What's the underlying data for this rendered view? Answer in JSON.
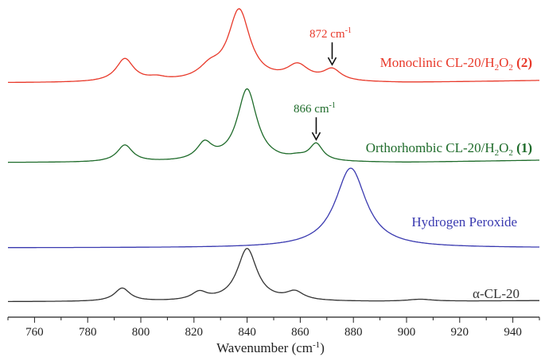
{
  "chart_data": {
    "type": "line",
    "xlabel_main": "Wavenumber (cm",
    "xlabel_sup": "-1",
    "xlabel_end": ")",
    "xlim": [
      750,
      950
    ],
    "x_ticks": [
      760,
      780,
      800,
      820,
      840,
      860,
      880,
      900,
      920,
      940
    ],
    "series": [
      {
        "name": "Monoclinic CL-20/H2O2 (2)",
        "label_main": "Monoclinic CL-20/H",
        "label_sub1": "2",
        "label_mid": "O",
        "label_sub2": "2",
        "label_bold": " (2)",
        "color": "#e8392a",
        "baseline": 0.02,
        "peaks": [
          [
            794,
            4,
            0.3
          ],
          [
            806,
            4,
            0.04
          ],
          [
            826,
            5,
            0.15
          ],
          [
            837,
            5,
            0.93
          ],
          [
            859,
            5,
            0.2
          ],
          [
            872,
            4,
            0.15
          ]
        ],
        "tail": 0.03
      },
      {
        "name": "Orthorhombic CL-20/H2O2 (1)",
        "label_main": "Orthorhombic CL-20/H",
        "label_sub1": "2",
        "label_mid": "O",
        "label_sub2": "2",
        "label_bold": " (1)",
        "color": "#1e6b2a",
        "baseline": 0.02,
        "peaks": [
          [
            794,
            3.5,
            0.22
          ],
          [
            824,
            3.5,
            0.22
          ],
          [
            840,
            4.5,
            0.95
          ],
          [
            859,
            4,
            0.04
          ],
          [
            866,
            3,
            0.22
          ]
        ],
        "tail": 0.03
      },
      {
        "name": "Hydrogen Peroxide",
        "label_main": "Hydrogen Peroxide",
        "color": "#3a3ab0",
        "baseline": 0.0,
        "peaks": [
          [
            879,
            7,
            1.0
          ]
        ],
        "tail": 0.0
      },
      {
        "name": "α-CL-20",
        "label_main": "α-CL-20",
        "color": "#333333",
        "baseline": 0.02,
        "peaks": [
          [
            793,
            3.5,
            0.25
          ],
          [
            822,
            3.5,
            0.15
          ],
          [
            840,
            4.5,
            1.0
          ],
          [
            858,
            4,
            0.16
          ],
          [
            905,
            6,
            0.04
          ]
        ],
        "tail": 0.02
      }
    ],
    "annotations": [
      {
        "text": "872 cm",
        "sup": "-1",
        "x": 872,
        "series": 0,
        "color": "#e8392a"
      },
      {
        "text": "866 cm",
        "sup": "-1",
        "x": 866,
        "series": 1,
        "color": "#1e6b2a"
      }
    ]
  }
}
